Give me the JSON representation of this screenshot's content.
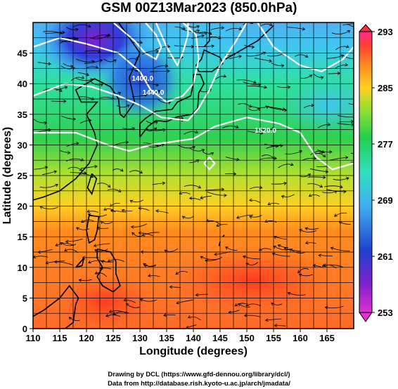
{
  "title": "GSM 00Z13Mar2023 (850.0hPa)",
  "chart_data": {
    "type": "heatmap",
    "variable_note": "temperature shading with wind streamlines and geopotential height contours",
    "xlabel": "Longitude (degrees)",
    "ylabel": "Latitude  (degrees)",
    "xlim": [
      110,
      170
    ],
    "ylim": [
      0,
      50
    ],
    "x_ticks": [
      "110",
      "115",
      "120",
      "125",
      "130",
      "135",
      "140",
      "145",
      "150",
      "155",
      "160",
      "165"
    ],
    "y_ticks": [
      "0",
      "5",
      "10",
      "15",
      "20",
      "25",
      "30",
      "35",
      "40",
      "45"
    ],
    "grid": true,
    "colorbar": {
      "min": 253,
      "max": 293,
      "ticks": [
        "293",
        "285",
        "277",
        "269",
        "261",
        "253"
      ],
      "colors": [
        "#ff2a8a",
        "#ff4030",
        "#ff8a20",
        "#ffd020",
        "#90e030",
        "#20d050",
        "#30e0c0",
        "#40b0f0",
        "#2040d0",
        "#8020d0",
        "#e030d0"
      ]
    },
    "contours": [
      {
        "label": "1400.0",
        "lon": 130.5,
        "lat": 40.5
      },
      {
        "label": "1440.0",
        "lon": 132.5,
        "lat": 38.2
      },
      {
        "label": "1520.0",
        "lon": 153.5,
        "lat": 32.0
      }
    ]
  },
  "credits": {
    "line1": "Drawing by DCL (https://www.gfd-dennou.org/library/dcl/)",
    "line2": "Data from http://database.rish.kyoto-u.ac.jp/arch/jmadata/"
  }
}
